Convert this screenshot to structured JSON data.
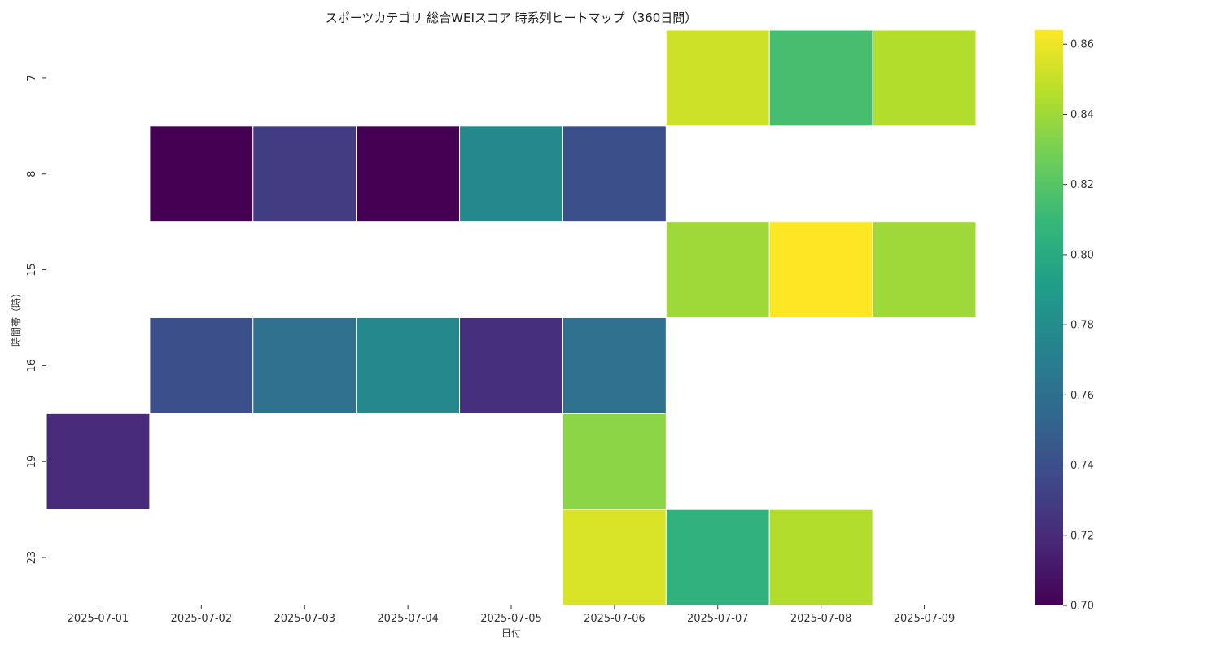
{
  "chart_data": {
    "type": "heatmap",
    "title": "スポーツカテゴリ 総合WEIスコア 時系列ヒートマップ（360日間）",
    "xlabel": "日付",
    "ylabel": "時間帯（時）",
    "x": [
      "2025-07-01",
      "2025-07-02",
      "2025-07-03",
      "2025-07-04",
      "2025-07-05",
      "2025-07-06",
      "2025-07-07",
      "2025-07-08",
      "2025-07-09"
    ],
    "y": [
      "7",
      "8",
      "15",
      "16",
      "19",
      "23"
    ],
    "values": [
      [
        null,
        null,
        null,
        null,
        null,
        null,
        0.852,
        0.815,
        0.845
      ],
      [
        null,
        0.7,
        0.73,
        0.7,
        0.777,
        0.74,
        null,
        null,
        null
      ],
      [
        null,
        null,
        null,
        null,
        null,
        null,
        0.84,
        0.864,
        0.84
      ],
      [
        null,
        0.74,
        0.76,
        0.777,
        0.722,
        0.76,
        null,
        null,
        null
      ],
      [
        0.72,
        null,
        null,
        null,
        null,
        0.835,
        null,
        null,
        null
      ],
      [
        null,
        null,
        null,
        null,
        null,
        0.855,
        0.805,
        0.845,
        null
      ]
    ],
    "colorbar": {
      "min": 0.7,
      "max": 0.864,
      "ticks": [
        "0.70",
        "0.72",
        "0.74",
        "0.76",
        "0.78",
        "0.80",
        "0.82",
        "0.84",
        "0.86"
      ],
      "colormap": "viridis"
    },
    "grid": false,
    "colors": {
      "viridis": [
        "#440154",
        "#482878",
        "#3e4989",
        "#31688e",
        "#26828e",
        "#1f9e89",
        "#35b779",
        "#6ece58",
        "#b5de2b",
        "#fde725"
      ]
    }
  }
}
